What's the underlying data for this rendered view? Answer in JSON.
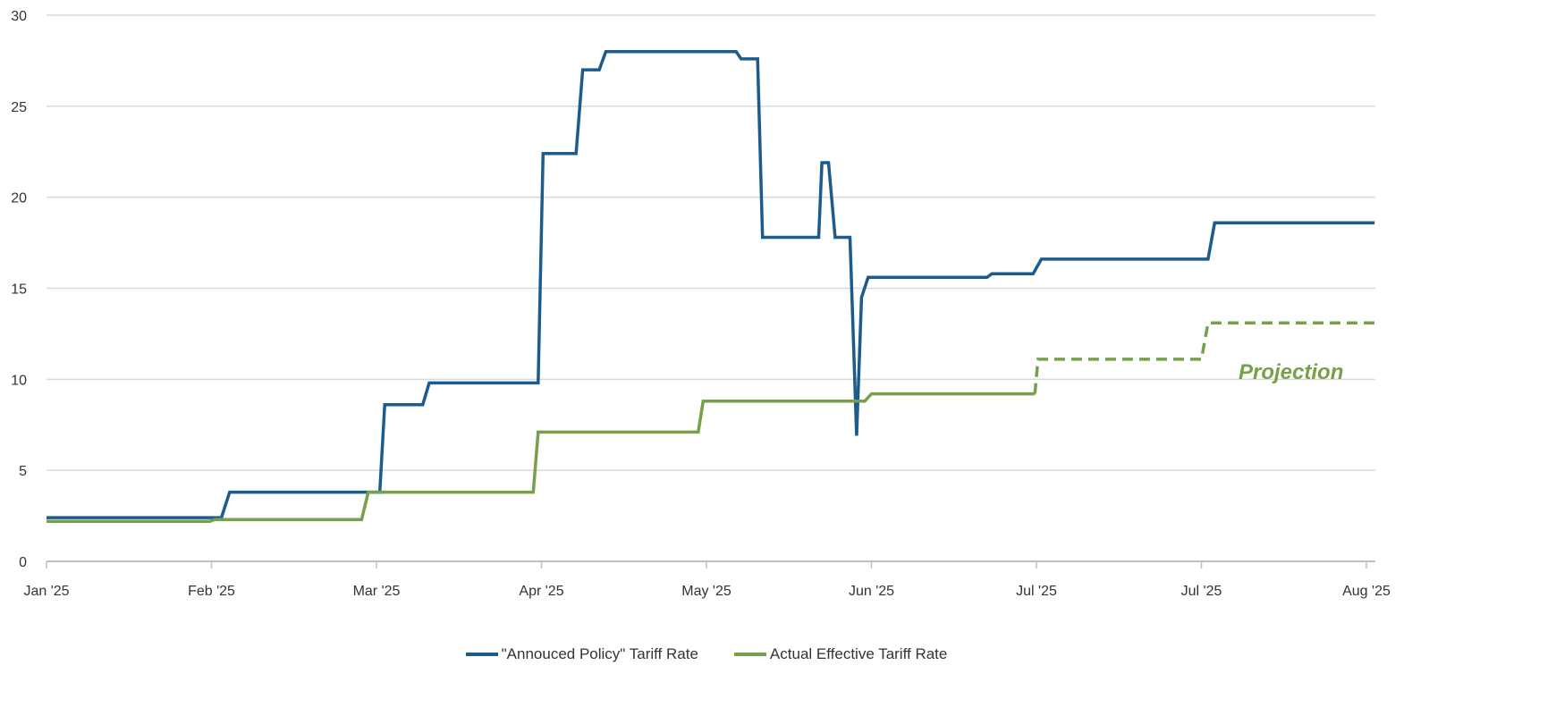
{
  "chart_data": {
    "type": "line",
    "title": "",
    "xlabel": "",
    "ylabel": "",
    "ylim": [
      0,
      30
    ],
    "xlim": [
      0,
      8
    ],
    "grid": true,
    "yticks": [
      0,
      5,
      10,
      15,
      20,
      25,
      30
    ],
    "x_tick_labels": [
      "Jan '25",
      "Feb '25",
      "Mar '25",
      "Apr '25",
      "May '25",
      "Jun '25",
      "Jul '25",
      "Jul '25",
      "Aug '25"
    ],
    "legend_position": "bottom",
    "annotation": "Projection",
    "series": [
      {
        "name": "\"Annouced Policy\" Tariff Rate",
        "color": "#1d5b8c",
        "style": "solid",
        "points": [
          [
            0,
            2.4
          ],
          [
            1.06,
            2.4
          ],
          [
            1.11,
            3.8
          ],
          [
            2.02,
            3.8
          ],
          [
            2.05,
            8.6
          ],
          [
            2.28,
            8.6
          ],
          [
            2.32,
            9.8
          ],
          [
            2.98,
            9.8
          ],
          [
            3.01,
            22.4
          ],
          [
            3.21,
            22.4
          ],
          [
            3.25,
            27
          ],
          [
            3.35,
            27
          ],
          [
            3.39,
            28
          ],
          [
            4.18,
            28
          ],
          [
            4.21,
            27.6
          ],
          [
            4.31,
            27.6
          ],
          [
            4.34,
            17.8
          ],
          [
            4.68,
            17.8
          ],
          [
            4.7,
            21.9
          ],
          [
            4.74,
            21.9
          ],
          [
            4.78,
            17.8
          ],
          [
            4.87,
            17.8
          ],
          [
            4.91,
            6.9
          ],
          [
            4.94,
            14.5
          ],
          [
            4.98,
            15.6
          ],
          [
            5.7,
            15.6
          ],
          [
            5.73,
            15.8
          ],
          [
            5.98,
            15.8
          ],
          [
            6.03,
            16.6
          ],
          [
            7.04,
            16.6
          ],
          [
            7.08,
            18.6
          ],
          [
            8.05,
            18.6
          ]
        ]
      },
      {
        "name": "Actual Effective Tariff Rate",
        "color": "#76a04a",
        "style": "solid",
        "points": [
          [
            0,
            2.2
          ],
          [
            0.99,
            2.2
          ],
          [
            1.02,
            2.3
          ],
          [
            1.91,
            2.3
          ],
          [
            1.95,
            3.8
          ],
          [
            2.95,
            3.8
          ],
          [
            2.98,
            7.1
          ],
          [
            3.95,
            7.1
          ],
          [
            3.98,
            8.8
          ],
          [
            4.96,
            8.8
          ],
          [
            5.0,
            9.2
          ],
          [
            5.99,
            9.2
          ]
        ]
      },
      {
        "name": "Projection",
        "color": "#76a04a",
        "style": "dashed",
        "points": [
          [
            5.99,
            9.2
          ],
          [
            6.01,
            11.1
          ],
          [
            7.0,
            11.1
          ],
          [
            7.04,
            13.1
          ],
          [
            8.05,
            13.1
          ]
        ]
      }
    ]
  }
}
